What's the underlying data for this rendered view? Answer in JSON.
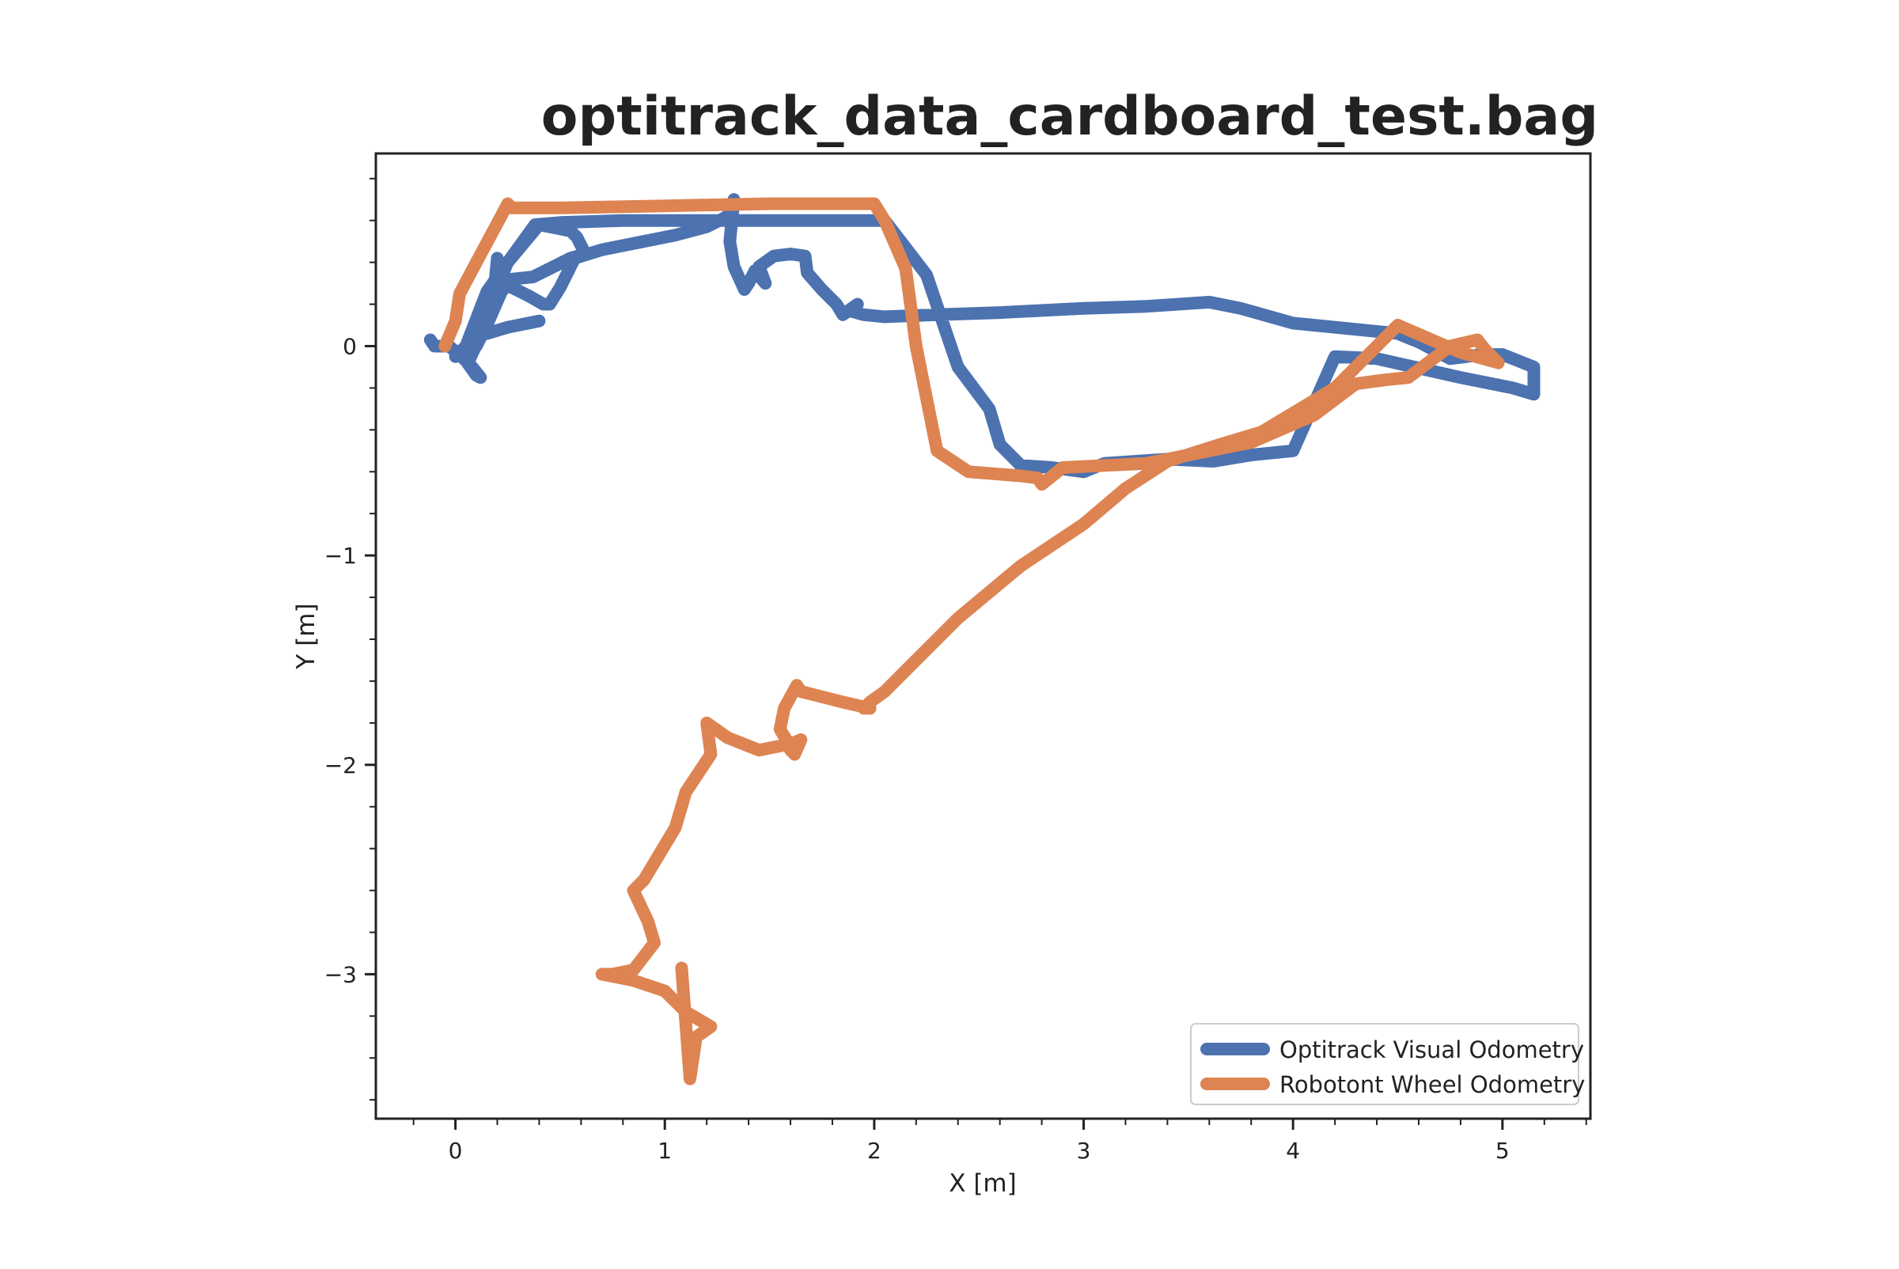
{
  "chart_data": {
    "type": "line",
    "title": "optitrack_data_cardboard_test.bag",
    "xlabel": "X [m]",
    "ylabel": "Y [m]",
    "xlim": [
      -0.38,
      5.42
    ],
    "ylim": [
      -3.69,
      0.92
    ],
    "xticks": [
      0,
      1,
      2,
      3,
      4,
      5
    ],
    "xtick_labels": [
      "0",
      "1",
      "2",
      "3",
      "4",
      "5"
    ],
    "yticks": [
      0,
      -1,
      -2,
      -3
    ],
    "ytick_labels": [
      "0",
      "−1",
      "−2",
      "−3"
    ],
    "grid": false,
    "legend_position": "lower-right",
    "series": [
      {
        "name": "Optitrack Visual Odometry",
        "color": "#4c72b0",
        "points": [
          [
            -0.12,
            0.03
          ],
          [
            -0.1,
            0.0
          ],
          [
            -0.03,
            0.0
          ],
          [
            0.05,
            -0.07
          ],
          [
            0.1,
            -0.14
          ],
          [
            0.12,
            -0.15
          ],
          [
            0.08,
            -0.1
          ],
          [
            0.06,
            -0.08
          ],
          [
            0.12,
            0.05
          ],
          [
            0.18,
            0.21
          ],
          [
            0.2,
            0.42
          ],
          [
            0.23,
            0.3
          ],
          [
            0.35,
            0.24
          ],
          [
            0.42,
            0.2
          ],
          [
            0.45,
            0.2
          ],
          [
            0.5,
            0.28
          ],
          [
            0.57,
            0.42
          ],
          [
            0.7,
            0.46
          ],
          [
            0.9,
            0.5
          ],
          [
            1.05,
            0.53
          ],
          [
            1.2,
            0.57
          ],
          [
            1.3,
            0.62
          ],
          [
            1.33,
            0.7
          ],
          [
            1.32,
            0.6
          ],
          [
            1.31,
            0.5
          ],
          [
            1.33,
            0.38
          ],
          [
            1.38,
            0.27
          ],
          [
            1.4,
            0.3
          ],
          [
            1.43,
            0.36
          ],
          [
            1.48,
            0.3
          ],
          [
            1.45,
            0.38
          ],
          [
            1.52,
            0.43
          ],
          [
            1.6,
            0.44
          ],
          [
            1.67,
            0.43
          ],
          [
            1.68,
            0.35
          ],
          [
            1.75,
            0.27
          ],
          [
            1.82,
            0.2
          ],
          [
            1.85,
            0.15
          ],
          [
            1.92,
            0.2
          ],
          [
            1.88,
            0.17
          ],
          [
            1.95,
            0.15
          ],
          [
            2.05,
            0.14
          ],
          [
            2.3,
            0.15
          ],
          [
            2.6,
            0.16
          ],
          [
            3.0,
            0.18
          ],
          [
            3.3,
            0.19
          ],
          [
            3.6,
            0.21
          ],
          [
            3.65,
            0.2
          ],
          [
            3.75,
            0.18
          ],
          [
            4.0,
            0.11
          ],
          [
            4.3,
            0.08
          ],
          [
            4.5,
            0.06
          ],
          [
            4.6,
            0.02
          ],
          [
            4.75,
            -0.06
          ],
          [
            4.83,
            -0.05
          ],
          [
            4.9,
            -0.04
          ],
          [
            5.0,
            -0.04
          ],
          [
            5.15,
            -0.1
          ],
          [
            5.15,
            -0.23
          ],
          [
            5.05,
            -0.2
          ],
          [
            4.8,
            -0.15
          ],
          [
            4.4,
            -0.06
          ],
          [
            4.2,
            -0.05
          ],
          [
            4.0,
            -0.5
          ],
          [
            3.8,
            -0.52
          ],
          [
            3.62,
            -0.55
          ],
          [
            3.4,
            -0.54
          ],
          [
            3.1,
            -0.56
          ],
          [
            3.0,
            -0.6
          ],
          [
            2.85,
            -0.58
          ],
          [
            2.7,
            -0.57
          ],
          [
            2.6,
            -0.47
          ],
          [
            2.55,
            -0.3
          ],
          [
            2.4,
            -0.1
          ],
          [
            2.25,
            0.34
          ],
          [
            2.15,
            0.47
          ],
          [
            2.05,
            0.6
          ],
          [
            2.0,
            0.6
          ],
          [
            1.5,
            0.6
          ],
          [
            1.2,
            0.6
          ],
          [
            0.8,
            0.6
          ],
          [
            0.5,
            0.59
          ],
          [
            0.38,
            0.58
          ],
          [
            0.25,
            0.4
          ],
          [
            0.15,
            0.26
          ],
          [
            0.05,
            0.0
          ],
          [
            0.0,
            -0.05
          ],
          [
            0.1,
            0.0
          ],
          [
            0.15,
            0.1
          ],
          [
            0.22,
            0.26
          ],
          [
            0.27,
            0.32
          ],
          [
            0.37,
            0.33
          ],
          [
            0.45,
            0.37
          ],
          [
            0.55,
            0.42
          ],
          [
            0.62,
            0.44
          ],
          [
            0.6,
            0.48
          ],
          [
            0.58,
            0.52
          ],
          [
            0.55,
            0.55
          ],
          [
            0.45,
            0.57
          ],
          [
            0.4,
            0.58
          ],
          [
            0.25,
            0.4
          ],
          [
            0.12,
            0.1
          ],
          [
            0.15,
            0.06
          ],
          [
            0.25,
            0.09
          ],
          [
            0.35,
            0.11
          ],
          [
            0.4,
            0.12
          ]
        ]
      },
      {
        "name": "Robotont Wheel Odometry",
        "color": "#dd8452",
        "points": [
          [
            -0.05,
            0.0
          ],
          [
            0.0,
            0.12
          ],
          [
            0.02,
            0.25
          ],
          [
            0.1,
            0.4
          ],
          [
            0.25,
            0.68
          ],
          [
            0.27,
            0.66
          ],
          [
            0.5,
            0.66
          ],
          [
            1.0,
            0.67
          ],
          [
            1.5,
            0.68
          ],
          [
            2.0,
            0.68
          ],
          [
            2.05,
            0.6
          ],
          [
            2.15,
            0.37
          ],
          [
            2.2,
            0.0
          ],
          [
            2.3,
            -0.5
          ],
          [
            2.45,
            -0.6
          ],
          [
            2.7,
            -0.62
          ],
          [
            2.78,
            -0.63
          ],
          [
            2.8,
            -0.66
          ],
          [
            2.9,
            -0.58
          ],
          [
            3.3,
            -0.56
          ],
          [
            3.6,
            -0.5
          ],
          [
            3.8,
            -0.46
          ],
          [
            4.1,
            -0.33
          ],
          [
            4.3,
            -0.18
          ],
          [
            4.45,
            -0.16
          ],
          [
            4.55,
            -0.15
          ],
          [
            4.75,
            0.0
          ],
          [
            4.88,
            0.03
          ],
          [
            4.92,
            -0.02
          ],
          [
            4.98,
            -0.08
          ],
          [
            4.8,
            -0.03
          ],
          [
            4.5,
            0.1
          ],
          [
            4.2,
            -0.2
          ],
          [
            3.85,
            -0.41
          ],
          [
            3.65,
            -0.47
          ],
          [
            3.4,
            -0.55
          ],
          [
            3.2,
            -0.68
          ],
          [
            3.0,
            -0.85
          ],
          [
            2.7,
            -1.05
          ],
          [
            2.4,
            -1.3
          ],
          [
            2.2,
            -1.5
          ],
          [
            2.05,
            -1.65
          ],
          [
            1.98,
            -1.7
          ],
          [
            1.95,
            -1.73
          ],
          [
            1.98,
            -1.73
          ],
          [
            1.85,
            -1.7
          ],
          [
            1.65,
            -1.65
          ],
          [
            1.63,
            -1.62
          ],
          [
            1.57,
            -1.73
          ],
          [
            1.55,
            -1.83
          ],
          [
            1.58,
            -1.88
          ],
          [
            1.6,
            -1.93
          ],
          [
            1.62,
            -1.95
          ],
          [
            1.65,
            -1.88
          ],
          [
            1.6,
            -1.9
          ],
          [
            1.45,
            -1.93
          ],
          [
            1.3,
            -1.87
          ],
          [
            1.2,
            -1.8
          ],
          [
            1.22,
            -1.95
          ],
          [
            1.1,
            -2.13
          ],
          [
            1.05,
            -2.3
          ],
          [
            0.9,
            -2.55
          ],
          [
            0.85,
            -2.6
          ],
          [
            0.92,
            -2.75
          ],
          [
            0.95,
            -2.85
          ],
          [
            0.85,
            -2.98
          ],
          [
            0.75,
            -3.0
          ],
          [
            0.7,
            -3.0
          ],
          [
            0.85,
            -3.03
          ],
          [
            1.0,
            -3.08
          ],
          [
            1.1,
            -3.18
          ],
          [
            1.22,
            -3.25
          ],
          [
            1.15,
            -3.3
          ],
          [
            1.12,
            -3.5
          ],
          [
            1.08,
            -2.97
          ]
        ]
      }
    ]
  }
}
